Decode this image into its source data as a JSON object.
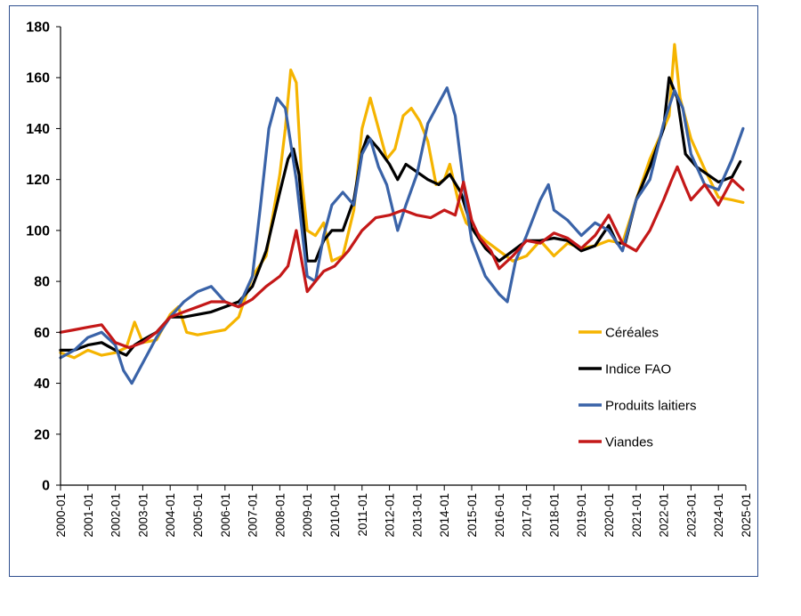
{
  "chart_data": {
    "type": "line",
    "title": "",
    "xlabel": "",
    "ylabel": "",
    "ylim": [
      0,
      180
    ],
    "yticks": [
      "0",
      "20",
      "40",
      "60",
      "80",
      "100",
      "120",
      "140",
      "160",
      "180"
    ],
    "xlim": [
      2000,
      2025
    ],
    "xticks": [
      "2000-01",
      "2001-01",
      "2002-01",
      "2003-01",
      "2004-01",
      "2005-01",
      "2006-01",
      "2007-01",
      "2008-01",
      "2009-01",
      "2010-01",
      "2011-01",
      "2012-01",
      "2013-01",
      "2014-01",
      "2015-01",
      "2016-01",
      "2017-01",
      "2018-01",
      "2019-01",
      "2020-01",
      "2021-01",
      "2022-01",
      "2023-01",
      "2024-01",
      "2025-01"
    ],
    "grid": false,
    "legend_position": "right",
    "series": [
      {
        "name": "Céréales",
        "color": "#f5b400",
        "points": [
          [
            2000.0,
            52
          ],
          [
            2000.5,
            50
          ],
          [
            2001.0,
            53
          ],
          [
            2001.5,
            51
          ],
          [
            2002.0,
            52
          ],
          [
            2002.4,
            54
          ],
          [
            2002.7,
            64
          ],
          [
            2003.0,
            56
          ],
          [
            2003.5,
            57
          ],
          [
            2004.0,
            67
          ],
          [
            2004.3,
            70
          ],
          [
            2004.6,
            60
          ],
          [
            2005.0,
            59
          ],
          [
            2005.5,
            60
          ],
          [
            2006.0,
            61
          ],
          [
            2006.5,
            66
          ],
          [
            2007.0,
            82
          ],
          [
            2007.5,
            90
          ],
          [
            2008.0,
            122
          ],
          [
            2008.2,
            140
          ],
          [
            2008.4,
            163
          ],
          [
            2008.6,
            158
          ],
          [
            2008.8,
            120
          ],
          [
            2009.0,
            100
          ],
          [
            2009.3,
            98
          ],
          [
            2009.6,
            103
          ],
          [
            2009.9,
            88
          ],
          [
            2010.3,
            90
          ],
          [
            2010.7,
            108
          ],
          [
            2011.0,
            140
          ],
          [
            2011.3,
            152
          ],
          [
            2011.6,
            140
          ],
          [
            2011.9,
            128
          ],
          [
            2012.2,
            132
          ],
          [
            2012.5,
            145
          ],
          [
            2012.8,
            148
          ],
          [
            2013.1,
            143
          ],
          [
            2013.4,
            135
          ],
          [
            2013.7,
            118
          ],
          [
            2014.0,
            120
          ],
          [
            2014.2,
            126
          ],
          [
            2014.5,
            112
          ],
          [
            2014.8,
            103
          ],
          [
            2015.0,
            101
          ],
          [
            2015.5,
            96
          ],
          [
            2016.0,
            92
          ],
          [
            2016.5,
            88
          ],
          [
            2017.0,
            90
          ],
          [
            2017.5,
            96
          ],
          [
            2018.0,
            90
          ],
          [
            2018.5,
            95
          ],
          [
            2019.0,
            93
          ],
          [
            2019.5,
            94
          ],
          [
            2020.0,
            96
          ],
          [
            2020.5,
            95
          ],
          [
            2021.0,
            112
          ],
          [
            2021.5,
            128
          ],
          [
            2022.0,
            140
          ],
          [
            2022.2,
            145
          ],
          [
            2022.4,
            173
          ],
          [
            2022.6,
            152
          ],
          [
            2023.0,
            136
          ],
          [
            2023.5,
            124
          ],
          [
            2024.0,
            113
          ],
          [
            2024.5,
            112
          ],
          [
            2024.9,
            111
          ]
        ]
      },
      {
        "name": "Indice FAO",
        "color": "#000000",
        "points": [
          [
            2000.0,
            53
          ],
          [
            2000.5,
            53
          ],
          [
            2001.0,
            55
          ],
          [
            2001.5,
            56
          ],
          [
            2002.0,
            53
          ],
          [
            2002.4,
            51
          ],
          [
            2002.7,
            55
          ],
          [
            2003.0,
            57
          ],
          [
            2003.5,
            60
          ],
          [
            2004.0,
            66
          ],
          [
            2004.5,
            66
          ],
          [
            2005.0,
            67
          ],
          [
            2005.5,
            68
          ],
          [
            2006.0,
            70
          ],
          [
            2006.5,
            72
          ],
          [
            2007.0,
            78
          ],
          [
            2007.5,
            92
          ],
          [
            2008.0,
            115
          ],
          [
            2008.3,
            128
          ],
          [
            2008.5,
            132
          ],
          [
            2008.7,
            122
          ],
          [
            2009.0,
            88
          ],
          [
            2009.3,
            88
          ],
          [
            2009.6,
            96
          ],
          [
            2009.9,
            100
          ],
          [
            2010.3,
            100
          ],
          [
            2010.7,
            112
          ],
          [
            2011.0,
            131
          ],
          [
            2011.2,
            137
          ],
          [
            2011.6,
            132
          ],
          [
            2012.0,
            126
          ],
          [
            2012.3,
            120
          ],
          [
            2012.6,
            126
          ],
          [
            2013.0,
            123
          ],
          [
            2013.4,
            120
          ],
          [
            2013.8,
            118
          ],
          [
            2014.2,
            122
          ],
          [
            2014.6,
            115
          ],
          [
            2015.0,
            101
          ],
          [
            2015.5,
            93
          ],
          [
            2016.0,
            88
          ],
          [
            2016.5,
            92
          ],
          [
            2017.0,
            96
          ],
          [
            2017.5,
            96
          ],
          [
            2018.0,
            97
          ],
          [
            2018.5,
            96
          ],
          [
            2019.0,
            92
          ],
          [
            2019.5,
            94
          ],
          [
            2020.0,
            102
          ],
          [
            2020.3,
            95
          ],
          [
            2020.6,
            95
          ],
          [
            2021.0,
            112
          ],
          [
            2021.5,
            125
          ],
          [
            2022.0,
            140
          ],
          [
            2022.2,
            160
          ],
          [
            2022.5,
            152
          ],
          [
            2022.8,
            130
          ],
          [
            2023.2,
            125
          ],
          [
            2023.6,
            122
          ],
          [
            2024.0,
            119
          ],
          [
            2024.5,
            121
          ],
          [
            2024.8,
            127
          ]
        ]
      },
      {
        "name": "Produits laitiers",
        "color": "#3a63a8",
        "points": [
          [
            2000.0,
            50
          ],
          [
            2000.5,
            53
          ],
          [
            2001.0,
            58
          ],
          [
            2001.5,
            60
          ],
          [
            2002.0,
            55
          ],
          [
            2002.3,
            45
          ],
          [
            2002.6,
            40
          ],
          [
            2003.0,
            48
          ],
          [
            2003.5,
            58
          ],
          [
            2004.0,
            66
          ],
          [
            2004.5,
            72
          ],
          [
            2005.0,
            76
          ],
          [
            2005.5,
            78
          ],
          [
            2006.0,
            72
          ],
          [
            2006.5,
            70
          ],
          [
            2007.0,
            82
          ],
          [
            2007.3,
            110
          ],
          [
            2007.6,
            140
          ],
          [
            2007.9,
            152
          ],
          [
            2008.2,
            148
          ],
          [
            2008.6,
            120
          ],
          [
            2009.0,
            82
          ],
          [
            2009.3,
            80
          ],
          [
            2009.6,
            98
          ],
          [
            2009.9,
            110
          ],
          [
            2010.3,
            115
          ],
          [
            2010.7,
            110
          ],
          [
            2011.0,
            130
          ],
          [
            2011.3,
            136
          ],
          [
            2011.6,
            125
          ],
          [
            2011.9,
            118
          ],
          [
            2012.3,
            100
          ],
          [
            2012.6,
            110
          ],
          [
            2013.0,
            122
          ],
          [
            2013.4,
            142
          ],
          [
            2013.8,
            150
          ],
          [
            2014.1,
            156
          ],
          [
            2014.4,
            145
          ],
          [
            2014.8,
            110
          ],
          [
            2015.0,
            96
          ],
          [
            2015.5,
            82
          ],
          [
            2016.0,
            75
          ],
          [
            2016.3,
            72
          ],
          [
            2016.6,
            88
          ],
          [
            2017.0,
            98
          ],
          [
            2017.5,
            112
          ],
          [
            2017.8,
            118
          ],
          [
            2018.0,
            108
          ],
          [
            2018.5,
            104
          ],
          [
            2019.0,
            98
          ],
          [
            2019.5,
            103
          ],
          [
            2020.0,
            100
          ],
          [
            2020.5,
            92
          ],
          [
            2021.0,
            112
          ],
          [
            2021.5,
            120
          ],
          [
            2022.0,
            142
          ],
          [
            2022.4,
            155
          ],
          [
            2022.7,
            148
          ],
          [
            2023.0,
            130
          ],
          [
            2023.5,
            118
          ],
          [
            2024.0,
            116
          ],
          [
            2024.5,
            128
          ],
          [
            2024.9,
            140
          ]
        ]
      },
      {
        "name": "Viandes",
        "color": "#c41818",
        "points": [
          [
            2000.0,
            60
          ],
          [
            2000.5,
            61
          ],
          [
            2001.0,
            62
          ],
          [
            2001.5,
            63
          ],
          [
            2002.0,
            56
          ],
          [
            2002.5,
            54
          ],
          [
            2003.0,
            56
          ],
          [
            2003.5,
            60
          ],
          [
            2004.0,
            66
          ],
          [
            2004.5,
            68
          ],
          [
            2005.0,
            70
          ],
          [
            2005.5,
            72
          ],
          [
            2006.0,
            72
          ],
          [
            2006.5,
            70
          ],
          [
            2007.0,
            73
          ],
          [
            2007.5,
            78
          ],
          [
            2008.0,
            82
          ],
          [
            2008.3,
            86
          ],
          [
            2008.6,
            100
          ],
          [
            2009.0,
            76
          ],
          [
            2009.3,
            80
          ],
          [
            2009.6,
            84
          ],
          [
            2010.0,
            86
          ],
          [
            2010.5,
            92
          ],
          [
            2011.0,
            100
          ],
          [
            2011.5,
            105
          ],
          [
            2012.0,
            106
          ],
          [
            2012.5,
            108
          ],
          [
            2013.0,
            106
          ],
          [
            2013.5,
            105
          ],
          [
            2014.0,
            108
          ],
          [
            2014.4,
            106
          ],
          [
            2014.7,
            119
          ],
          [
            2015.0,
            104
          ],
          [
            2015.3,
            97
          ],
          [
            2015.7,
            92
          ],
          [
            2016.0,
            85
          ],
          [
            2016.5,
            90
          ],
          [
            2017.0,
            96
          ],
          [
            2017.5,
            95
          ],
          [
            2018.0,
            99
          ],
          [
            2018.5,
            97
          ],
          [
            2019.0,
            93
          ],
          [
            2019.5,
            98
          ],
          [
            2020.0,
            106
          ],
          [
            2020.5,
            95
          ],
          [
            2021.0,
            92
          ],
          [
            2021.5,
            100
          ],
          [
            2022.0,
            112
          ],
          [
            2022.3,
            120
          ],
          [
            2022.5,
            125
          ],
          [
            2022.8,
            117
          ],
          [
            2023.0,
            112
          ],
          [
            2023.5,
            118
          ],
          [
            2024.0,
            110
          ],
          [
            2024.5,
            120
          ],
          [
            2024.9,
            116
          ]
        ]
      }
    ]
  }
}
